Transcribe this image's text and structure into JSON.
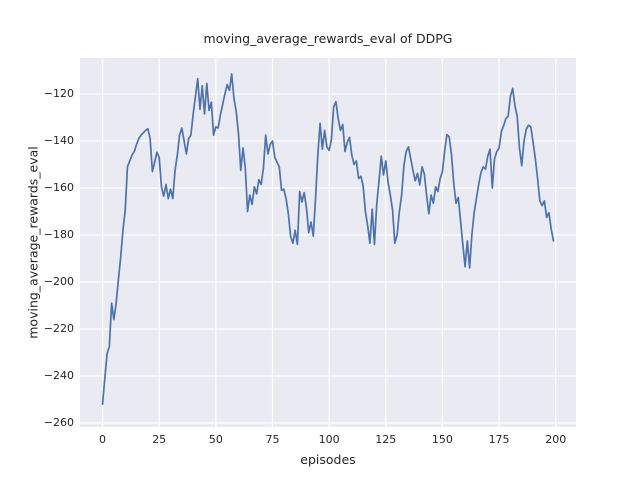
{
  "chart_data": {
    "type": "line",
    "title": "moving_average_rewards_eval of DDPG",
    "xlabel": "episodes",
    "ylabel": "moving_average_rewards_eval",
    "series_name": "moving_average_rewards_eval",
    "line_color": "#4C72B0",
    "axes_background": "#EAEAF2",
    "grid_color": "#FFFFFF",
    "grid": true,
    "legend": "none",
    "xlim": [
      -9.95,
      208.95
    ],
    "ylim": [
      -261.7,
      -104.7
    ],
    "xtick_values": [
      0,
      25,
      50,
      75,
      100,
      125,
      150,
      175,
      200
    ],
    "xtick_labels": [
      "0",
      "25",
      "50",
      "75",
      "100",
      "125",
      "150",
      "175",
      "200"
    ],
    "ytick_values": [
      -120,
      -140,
      -160,
      -180,
      -200,
      -220,
      -240,
      -260
    ],
    "ytick_labels": [
      "−120",
      "−140",
      "−160",
      "−180",
      "−200",
      "−220",
      "−240",
      "−260"
    ],
    "x_start": 0,
    "x_step": 1,
    "values": [
      -252,
      -241,
      -230.5,
      -227.5,
      -209,
      -216,
      -209,
      -199,
      -189.5,
      -178,
      -169.5,
      -151,
      -148.5,
      -146,
      -144.5,
      -141.5,
      -139,
      -137.5,
      -136.5,
      -135.5,
      -134.8,
      -139,
      -153,
      -149,
      -144.8,
      -147,
      -159.5,
      -163.5,
      -158.5,
      -164.5,
      -160.5,
      -164.5,
      -152.5,
      -146,
      -137.5,
      -134.5,
      -140,
      -145.5,
      -139,
      -137.5,
      -128.5,
      -121,
      -113.5,
      -126.5,
      -116.5,
      -128.5,
      -115.5,
      -127,
      -123.5,
      -137.5,
      -134,
      -134.5,
      -129,
      -124.5,
      -120,
      -116,
      -118.5,
      -111.5,
      -122,
      -127.5,
      -137,
      -152.5,
      -143,
      -151.5,
      -170,
      -163,
      -167,
      -159.5,
      -162.5,
      -156.5,
      -158.5,
      -151.5,
      -137.5,
      -145.5,
      -141.5,
      -140,
      -147,
      -149,
      -151,
      -161,
      -160.5,
      -164.5,
      -171,
      -180.5,
      -183.5,
      -178,
      -184,
      -161.5,
      -166,
      -162,
      -168.5,
      -179,
      -174.5,
      -180.5,
      -164.5,
      -146,
      -132.5,
      -143.5,
      -135.5,
      -142.5,
      -144,
      -139.5,
      -125.5,
      -123.3,
      -130.5,
      -135.5,
      -133,
      -144.5,
      -140.5,
      -138.5,
      -146,
      -150,
      -148.5,
      -156,
      -155,
      -159,
      -170,
      -176,
      -183.5,
      -169,
      -184,
      -167,
      -157,
      -146.5,
      -154.5,
      -148.5,
      -157.5,
      -163,
      -169.5,
      -183.5,
      -180,
      -170,
      -163,
      -150.5,
      -144.5,
      -142.5,
      -147.5,
      -152.5,
      -157,
      -153.8,
      -158.7,
      -151,
      -154,
      -163,
      -171,
      -163,
      -166.5,
      -159.5,
      -161.5,
      -156,
      -153,
      -144,
      -137.3,
      -138.2,
      -146,
      -158,
      -166.5,
      -164,
      -174,
      -184,
      -193.5,
      -182.5,
      -194,
      -180,
      -170.5,
      -164.5,
      -158.5,
      -153.5,
      -151,
      -152,
      -146.5,
      -143.5,
      -160,
      -147.5,
      -144.5,
      -143,
      -136,
      -133.5,
      -130.5,
      -129.5,
      -121,
      -117.6,
      -125,
      -129.5,
      -143,
      -150.5,
      -140,
      -135,
      -133.3,
      -134,
      -140.5,
      -147.5,
      -156,
      -165.5,
      -167.5,
      -165.5,
      -172.5,
      -170.5,
      -177.5,
      -182.5
    ]
  }
}
